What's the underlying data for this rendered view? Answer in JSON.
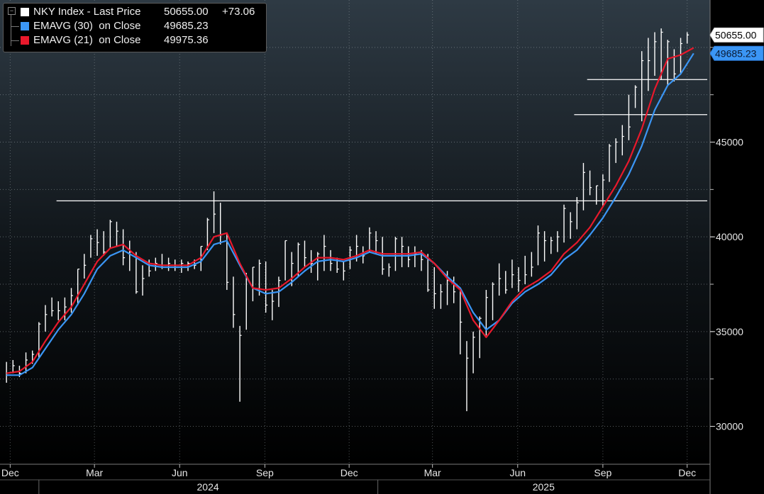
{
  "legend": {
    "rows": [
      {
        "label": "NKY Index - Last Price",
        "value": "50655.00",
        "change": "+73.06",
        "color": "#ffffff"
      },
      {
        "label": "EMAVG (30)  on Close",
        "value": "49685.23",
        "color": "#3b96f5"
      },
      {
        "label": "EMAVG (21)  on Close",
        "value": "49975.36",
        "color": "#e8192c"
      }
    ]
  },
  "chart_data": {
    "type": "line",
    "title": "",
    "xlabel": "",
    "ylabel": "",
    "ylim": [
      28000,
      52500
    ],
    "y_ticks": [
      30000,
      35000,
      40000,
      45000
    ],
    "x_ticks": [
      "Dec",
      "Mar",
      "Jun",
      "Sep",
      "Dec",
      "Mar",
      "Jun",
      "Sep",
      "Dec"
    ],
    "x_tick_dates": [
      "2023-12-01",
      "2024-03-01",
      "2024-06-01",
      "2024-09-01",
      "2024-12-01",
      "2025-03-01",
      "2025-06-01",
      "2025-09-01",
      "2025-12-01"
    ],
    "x_years": [
      {
        "label": "2024",
        "start": "2024-01-01",
        "end": "2024-12-31"
      },
      {
        "label": "2025",
        "start": "2025-01-01",
        "end": "2025-12-31"
      }
    ],
    "x_range": [
      "2023-11-20",
      "2025-12-25"
    ],
    "price_tags": [
      {
        "value": 50655.0,
        "label": "50655.00",
        "style": "white"
      },
      {
        "value": 49685.23,
        "label": "49685.23",
        "style": "blue"
      }
    ],
    "horizontal_lines": [
      {
        "y": 41900,
        "from": "2024-01-20",
        "to": "2025-12-25"
      },
      {
        "y": 46450,
        "from": "2025-08-01",
        "to": "2025-12-25"
      },
      {
        "y": 48300,
        "from": "2025-08-15",
        "to": "2025-12-25"
      }
    ],
    "series": [
      {
        "name": "NKY Index - Last Price",
        "color": "#ffffff",
        "style": "hl-bars",
        "x": [
          "2023-11-27",
          "2023-12-04",
          "2023-12-11",
          "2023-12-18",
          "2023-12-25",
          "2024-01-01",
          "2024-01-08",
          "2024-01-15",
          "2024-01-22",
          "2024-01-29",
          "2024-02-05",
          "2024-02-12",
          "2024-02-19",
          "2024-02-26",
          "2024-03-04",
          "2024-03-11",
          "2024-03-18",
          "2024-03-25",
          "2024-04-01",
          "2024-04-08",
          "2024-04-15",
          "2024-04-22",
          "2024-04-29",
          "2024-05-06",
          "2024-05-13",
          "2024-05-20",
          "2024-05-27",
          "2024-06-03",
          "2024-06-10",
          "2024-06-17",
          "2024-06-24",
          "2024-07-01",
          "2024-07-08",
          "2024-07-15",
          "2024-07-22",
          "2024-07-29",
          "2024-08-05",
          "2024-08-12",
          "2024-08-19",
          "2024-08-26",
          "2024-09-02",
          "2024-09-09",
          "2024-09-16",
          "2024-09-23",
          "2024-09-30",
          "2024-10-07",
          "2024-10-14",
          "2024-10-21",
          "2024-10-28",
          "2024-11-04",
          "2024-11-11",
          "2024-11-18",
          "2024-11-25",
          "2024-12-02",
          "2024-12-09",
          "2024-12-16",
          "2024-12-23",
          "2024-12-30",
          "2025-01-06",
          "2025-01-13",
          "2025-01-20",
          "2025-01-27",
          "2025-02-03",
          "2025-02-10",
          "2025-02-17",
          "2025-02-24",
          "2025-03-03",
          "2025-03-10",
          "2025-03-17",
          "2025-03-24",
          "2025-03-31",
          "2025-04-07",
          "2025-04-14",
          "2025-04-21",
          "2025-04-28",
          "2025-05-05",
          "2025-05-12",
          "2025-05-19",
          "2025-05-26",
          "2025-06-02",
          "2025-06-09",
          "2025-06-16",
          "2025-06-23",
          "2025-06-30",
          "2025-07-07",
          "2025-07-14",
          "2025-07-21",
          "2025-07-28",
          "2025-08-04",
          "2025-08-11",
          "2025-08-18",
          "2025-08-25",
          "2025-09-01",
          "2025-09-08",
          "2025-09-15",
          "2025-09-22",
          "2025-09-29",
          "2025-10-06",
          "2025-10-13",
          "2025-10-20",
          "2025-10-27",
          "2025-11-03",
          "2025-11-10",
          "2025-11-17",
          "2025-11-24",
          "2025-12-01"
        ],
        "high": [
          33400,
          33500,
          33200,
          33900,
          34000,
          35500,
          36400,
          36800,
          36600,
          36800,
          37300,
          38300,
          39100,
          40100,
          40400,
          40300,
          40900,
          40800,
          40400,
          39800,
          39200,
          38500,
          38800,
          38900,
          39100,
          38900,
          38800,
          38800,
          38700,
          38800,
          39500,
          41000,
          42400,
          41800,
          40200,
          37900,
          35300,
          38100,
          38400,
          38800,
          38700,
          37200,
          37900,
          39800,
          39200,
          39700,
          39800,
          39300,
          39200,
          40100,
          39300,
          38900,
          38700,
          39500,
          40100,
          39500,
          40500,
          40300,
          40000,
          38600,
          40000,
          40000,
          39500,
          39500,
          39300,
          39100,
          38400,
          37500,
          38200,
          37900,
          37200,
          34500,
          35000,
          35800,
          37200,
          37600,
          38600,
          38200,
          38800,
          38400,
          39000,
          39200,
          40600,
          40300,
          40000,
          40300,
          41700,
          41300,
          42100,
          43900,
          43500,
          42700,
          43300,
          44900,
          45200,
          45900,
          47500,
          48000,
          49800,
          50500,
          50800,
          51000,
          50400,
          49900,
          50500,
          50800
        ],
        "low": [
          32300,
          32800,
          32600,
          32800,
          33300,
          33600,
          35000,
          35800,
          35600,
          35600,
          36000,
          36400,
          37800,
          38900,
          39000,
          39000,
          39400,
          39500,
          38500,
          38200,
          37000,
          36900,
          37900,
          38200,
          38300,
          38200,
          38200,
          38100,
          38200,
          38300,
          38200,
          39300,
          40200,
          39600,
          37200,
          35200,
          31300,
          35100,
          36600,
          36900,
          36000,
          35600,
          36300,
          37700,
          37400,
          37900,
          38400,
          38100,
          37700,
          38200,
          38200,
          38100,
          37700,
          38300,
          38700,
          38600,
          39200,
          39100,
          38000,
          37900,
          38200,
          38400,
          38400,
          38400,
          38200,
          37100,
          36200,
          36200,
          36400,
          36500,
          33800,
          30800,
          32800,
          33600,
          34800,
          35600,
          36900,
          37000,
          37300,
          37100,
          37500,
          37900,
          38500,
          38700,
          39100,
          39200,
          39700,
          39900,
          40400,
          41400,
          42200,
          41700,
          41600,
          42900,
          43900,
          44300,
          45100,
          46800,
          46100,
          47700,
          48500,
          48300,
          48000,
          48200,
          48600,
          50200
        ],
        "close": [
          32800,
          33200,
          32800,
          33500,
          33800,
          35400,
          35900,
          36100,
          36100,
          36300,
          36900,
          38300,
          38500,
          39900,
          39700,
          39200,
          40800,
          40300,
          38900,
          39200,
          37100,
          37800,
          38200,
          38600,
          38400,
          38600,
          38500,
          38600,
          38600,
          38500,
          39500,
          40900,
          41200,
          40100,
          37600,
          35900,
          34800,
          37800,
          38400,
          38600,
          36400,
          36600,
          37700,
          39800,
          38600,
          39600,
          38900,
          38600,
          39100,
          39500,
          38600,
          38300,
          38200,
          39300,
          39500,
          39000,
          40200,
          39800,
          38300,
          38400,
          39900,
          39500,
          38800,
          39100,
          38800,
          37200,
          37000,
          37100,
          37700,
          37100,
          35500,
          33600,
          34700,
          35700,
          36800,
          37500,
          37800,
          37200,
          38000,
          37700,
          38000,
          38400,
          40200,
          39800,
          39800,
          40000,
          41500,
          40800,
          41800,
          43400,
          42600,
          42700,
          43000,
          44800,
          45000,
          45300,
          45800,
          47900,
          49300,
          49300,
          50300,
          50800,
          50300,
          48600,
          50200,
          50655
        ]
      },
      {
        "name": "EMAVG (30)  on Close",
        "color": "#3b96f5",
        "style": "line",
        "x": [
          "2023-11-27",
          "2023-12-11",
          "2023-12-25",
          "2024-01-08",
          "2024-01-22",
          "2024-02-05",
          "2024-02-19",
          "2024-03-04",
          "2024-03-18",
          "2024-04-01",
          "2024-04-15",
          "2024-04-29",
          "2024-05-13",
          "2024-05-27",
          "2024-06-10",
          "2024-06-24",
          "2024-07-08",
          "2024-07-22",
          "2024-08-05",
          "2024-08-19",
          "2024-09-02",
          "2024-09-16",
          "2024-09-30",
          "2024-10-14",
          "2024-10-28",
          "2024-11-11",
          "2024-11-25",
          "2024-12-09",
          "2024-12-23",
          "2025-01-06",
          "2025-01-20",
          "2025-02-03",
          "2025-02-17",
          "2025-03-03",
          "2025-03-17",
          "2025-03-31",
          "2025-04-14",
          "2025-04-28",
          "2025-05-12",
          "2025-05-26",
          "2025-06-09",
          "2025-06-23",
          "2025-07-07",
          "2025-07-21",
          "2025-08-04",
          "2025-08-18",
          "2025-09-01",
          "2025-09-15",
          "2025-09-29",
          "2025-10-13",
          "2025-10-27",
          "2025-11-10",
          "2025-11-24",
          "2025-12-08"
        ],
        "y": [
          32700,
          32700,
          33100,
          34100,
          35100,
          35900,
          37000,
          38300,
          39000,
          39300,
          38900,
          38500,
          38400,
          38400,
          38400,
          38700,
          39600,
          39800,
          38500,
          37300,
          37000,
          37100,
          37600,
          38200,
          38700,
          38800,
          38700,
          38900,
          39200,
          39000,
          39000,
          39000,
          39100,
          38600,
          37900,
          37300,
          36000,
          35100,
          35600,
          36500,
          37100,
          37500,
          38000,
          38800,
          39300,
          40100,
          41000,
          42100,
          43300,
          44800,
          46700,
          48000,
          48600,
          49685
        ]
      },
      {
        "name": "EMAVG (21)  on Close",
        "color": "#e8192c",
        "style": "line",
        "x": [
          "2023-11-27",
          "2023-12-11",
          "2023-12-25",
          "2024-01-08",
          "2024-01-22",
          "2024-02-05",
          "2024-02-19",
          "2024-03-04",
          "2024-03-18",
          "2024-04-01",
          "2024-04-15",
          "2024-04-29",
          "2024-05-13",
          "2024-05-27",
          "2024-06-10",
          "2024-06-24",
          "2024-07-08",
          "2024-07-22",
          "2024-08-05",
          "2024-08-19",
          "2024-09-02",
          "2024-09-16",
          "2024-09-30",
          "2024-10-14",
          "2024-10-28",
          "2024-11-11",
          "2024-11-25",
          "2024-12-09",
          "2024-12-23",
          "2025-01-06",
          "2025-01-20",
          "2025-02-03",
          "2025-02-17",
          "2025-03-03",
          "2025-03-17",
          "2025-03-31",
          "2025-04-14",
          "2025-04-28",
          "2025-05-12",
          "2025-05-26",
          "2025-06-09",
          "2025-06-23",
          "2025-07-07",
          "2025-07-21",
          "2025-08-04",
          "2025-08-18",
          "2025-09-01",
          "2025-09-15",
          "2025-09-29",
          "2025-10-13",
          "2025-10-27",
          "2025-11-10",
          "2025-11-24",
          "2025-12-08"
        ],
        "y": [
          32800,
          32900,
          33400,
          34500,
          35500,
          36300,
          37500,
          38700,
          39400,
          39600,
          39000,
          38600,
          38500,
          38500,
          38500,
          38900,
          40000,
          40200,
          38600,
          37300,
          37200,
          37300,
          37800,
          38400,
          38900,
          38900,
          38800,
          39000,
          39300,
          39100,
          39100,
          39100,
          39200,
          38600,
          37800,
          37200,
          35600,
          34700,
          35600,
          36600,
          37300,
          37700,
          38200,
          39100,
          39700,
          40500,
          41600,
          42700,
          44000,
          45700,
          47800,
          49400,
          49600,
          49975
        ]
      }
    ]
  }
}
